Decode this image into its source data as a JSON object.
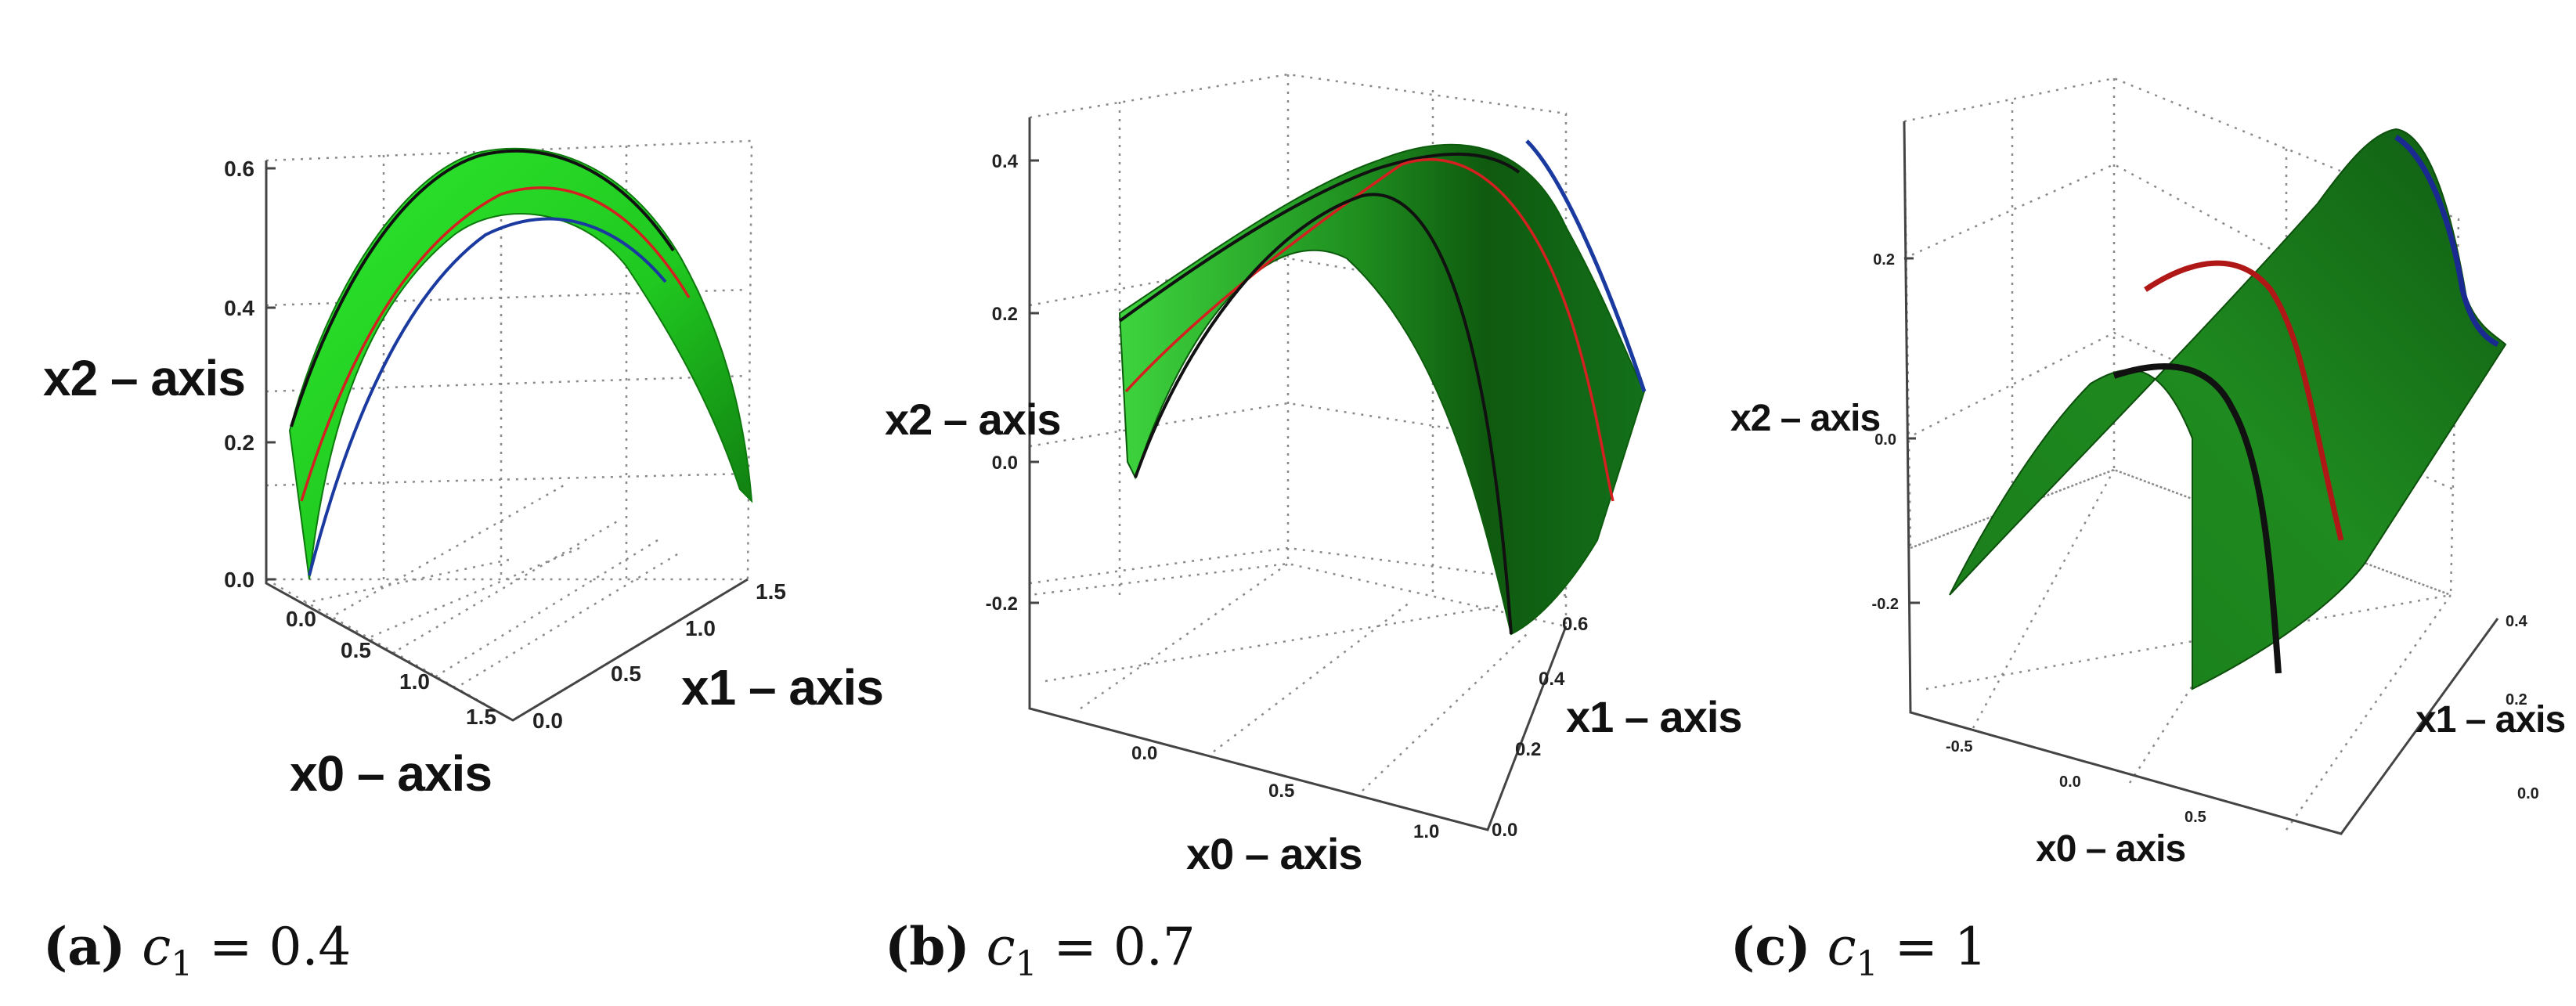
{
  "chart_data": [
    {
      "type": "surface",
      "panel": "a",
      "caption": {
        "label": "(a)",
        "symbol": "c",
        "subscript": "1",
        "value": "= 0.4"
      },
      "axes": {
        "x0": {
          "label": "x0 – axis",
          "ticks": [
            "0.0",
            "0.5",
            "1.0",
            "1.5"
          ],
          "range": [
            0,
            1.5
          ]
        },
        "x1": {
          "label": "x1 – axis",
          "ticks": [
            "0.0",
            "0.5",
            "1.0",
            "1.5"
          ],
          "range": [
            0,
            1.5
          ]
        },
        "x2": {
          "label": "x2 – axis",
          "ticks": [
            "0.0",
            "0.2",
            "0.4",
            "0.6"
          ],
          "range": [
            0,
            0.6
          ]
        }
      },
      "colors": {
        "surface": "#22d622",
        "curve_top": "#111111",
        "curve_mid": "#d42020",
        "curve_bottom": "#1a3aa0"
      },
      "grid": true
    },
    {
      "type": "surface",
      "panel": "b",
      "caption": {
        "label": "(b)",
        "symbol": "c",
        "subscript": "1",
        "value": "= 0.7"
      },
      "axes": {
        "x0": {
          "label": "x0 – axis",
          "ticks": [
            "0.0",
            "0.5",
            "1.0"
          ],
          "range": [
            0,
            1.0
          ]
        },
        "x1": {
          "label": "x1 – axis",
          "ticks": [
            "0.0",
            "0.2",
            "0.4",
            "0.6"
          ],
          "range": [
            0,
            0.6
          ]
        },
        "x2": {
          "label": "x2 – axis",
          "ticks": [
            "-0.2",
            "0.0",
            "0.2",
            "0.4"
          ],
          "range": [
            -0.2,
            0.4
          ]
        }
      },
      "colors": {
        "surface": "#1e8a1e",
        "curve_top": "#111111",
        "curve_mid": "#d42020",
        "curve_bottom": "#1a3aa0"
      },
      "grid": true
    },
    {
      "type": "surface",
      "panel": "c",
      "caption": {
        "label": "(c)",
        "symbol": "c",
        "subscript": "1",
        "value": "= 1"
      },
      "axes": {
        "x0": {
          "label": "x0 – axis",
          "ticks": [
            "-0.5",
            "0.0",
            "0.5"
          ],
          "range": [
            -0.5,
            0.5
          ]
        },
        "x1": {
          "label": "x1 – axis",
          "ticks": [
            "0.0",
            "0.2",
            "0.4"
          ],
          "range": [
            0,
            0.4
          ]
        },
        "x2": {
          "label": "x2 – axis",
          "ticks": [
            "-0.2",
            "0.0",
            "0.2"
          ],
          "range": [
            -0.2,
            0.2
          ]
        }
      },
      "colors": {
        "surface": "#1b7a1b",
        "curve_top": "#111111",
        "curve_mid": "#b01818",
        "curve_bottom": "#1a2a90"
      },
      "grid": true
    }
  ]
}
